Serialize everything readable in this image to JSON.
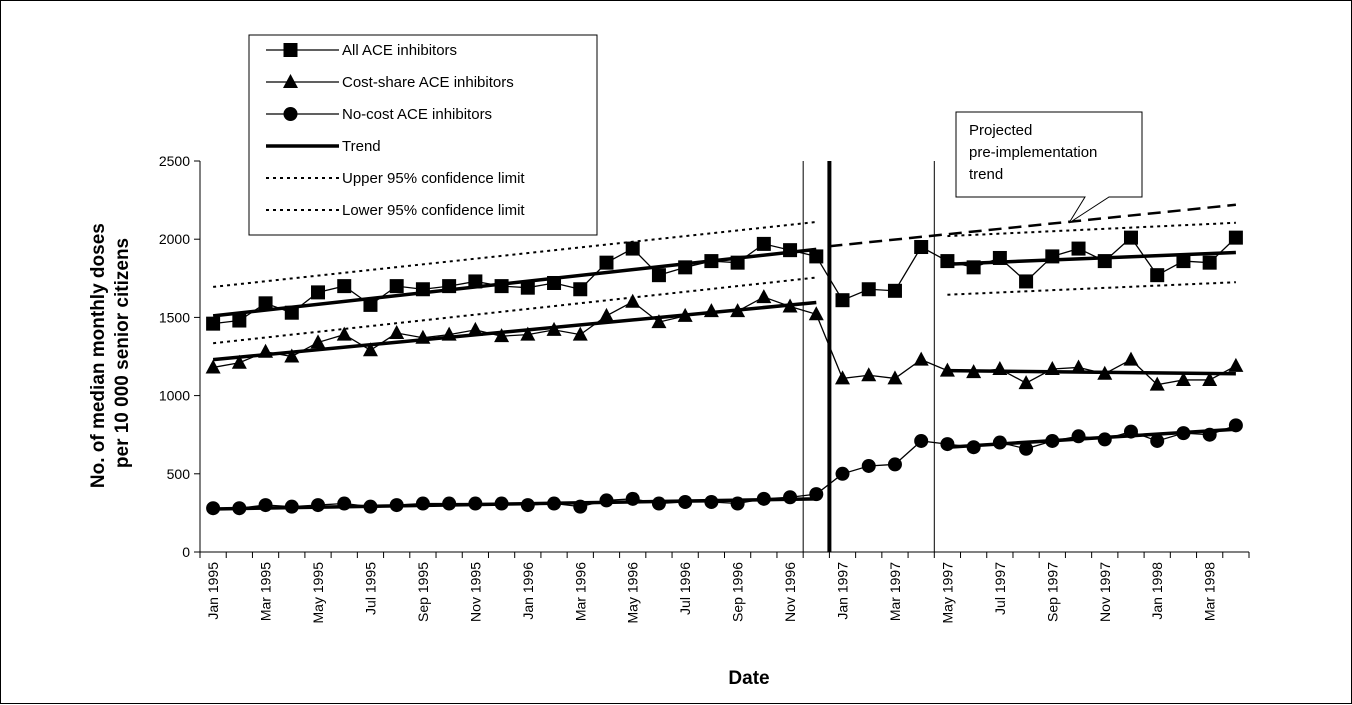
{
  "chart_data": {
    "type": "line",
    "title": "",
    "xlabel": "Date",
    "ylabel_line1": "No. of median monthly doses",
    "ylabel_line2": "per 10 000 senior citizens",
    "ylim": [
      0,
      2500
    ],
    "yticks": [
      0,
      500,
      1000,
      1500,
      2000,
      2500
    ],
    "grid": false,
    "legend_position": "top-left",
    "x_months": [
      "Jan 1995",
      "Feb 1995",
      "Mar 1995",
      "Apr 1995",
      "May 1995",
      "Jun 1995",
      "Jul 1995",
      "Aug 1995",
      "Sep 1995",
      "Oct 1995",
      "Nov 1995",
      "Dec 1995",
      "Jan 1996",
      "Feb 1996",
      "Mar 1996",
      "Apr 1996",
      "May 1996",
      "Jun 1996",
      "Jul 1996",
      "Aug 1996",
      "Sep 1996",
      "Oct 1996",
      "Nov 1996",
      "Dec 1996",
      "Jan 1997",
      "Feb 1997",
      "Mar 1997",
      "Apr 1997",
      "May 1997",
      "Jun 1997",
      "Jul 1997",
      "Aug 1997",
      "Sep 1997",
      "Oct 1997",
      "Nov 1997",
      "Dec 1997",
      "Jan 1998",
      "Feb 1998",
      "Mar 1998",
      "Apr 1998"
    ],
    "x_tick_labels": [
      "Jan 1995",
      "Mar 1995",
      "May 1995",
      "Jul 1995",
      "Sep 1995",
      "Nov 1995",
      "Jan 1996",
      "Mar 1996",
      "May 1996",
      "Jul 1996",
      "Sep 1996",
      "Nov 1996",
      "Jan 1997",
      "Mar 1997",
      "May 1997",
      "Jul 1997",
      "Sep 1997",
      "Nov 1997",
      "Jan 1998",
      "Mar 1998"
    ],
    "series": [
      {
        "name": "All ACE inhibitors",
        "marker": "square",
        "values": [
          1460,
          1480,
          1590,
          1530,
          1660,
          1700,
          1580,
          1700,
          1680,
          1700,
          1730,
          1700,
          1690,
          1720,
          1680,
          1850,
          1940,
          1770,
          1820,
          1860,
          1850,
          1970,
          1930,
          1890,
          1610,
          1680,
          1670,
          1950,
          1860,
          1820,
          1880,
          1730,
          1890,
          1940,
          1860,
          2010,
          1770,
          1860,
          1850,
          2010
        ]
      },
      {
        "name": "Cost-share ACE inhibitors",
        "marker": "triangle",
        "values": [
          1180,
          1210,
          1280,
          1250,
          1340,
          1390,
          1290,
          1400,
          1370,
          1390,
          1420,
          1380,
          1390,
          1420,
          1390,
          1510,
          1600,
          1470,
          1510,
          1540,
          1540,
          1630,
          1570,
          1520,
          1110,
          1130,
          1110,
          1230,
          1160,
          1150,
          1170,
          1080,
          1170,
          1180,
          1140,
          1230,
          1070,
          1100,
          1100,
          1190
        ]
      },
      {
        "name": "No-cost ACE inhibitors",
        "marker": "circle",
        "values": [
          280,
          280,
          300,
          290,
          300,
          310,
          290,
          300,
          310,
          310,
          310,
          310,
          300,
          310,
          290,
          330,
          340,
          310,
          320,
          320,
          310,
          340,
          350,
          370,
          500,
          550,
          560,
          710,
          690,
          670,
          700,
          660,
          710,
          740,
          720,
          770,
          710,
          760,
          750,
          810
        ]
      }
    ],
    "trend_segments": [
      {
        "series": "All ACE inhibitors",
        "x_start": "Jan 1995",
        "x_end": "Dec 1996",
        "y_start": 1510,
        "y_end": 1935
      },
      {
        "series": "All ACE inhibitors",
        "x_start": "May 1997",
        "x_end": "Apr 1998",
        "y_start": 1840,
        "y_end": 1915
      },
      {
        "series": "Cost-share ACE inhibitors",
        "x_start": "Jan 1995",
        "x_end": "Dec 1996",
        "y_start": 1230,
        "y_end": 1595
      },
      {
        "series": "Cost-share ACE inhibitors",
        "x_start": "May 1997",
        "x_end": "Apr 1998",
        "y_start": 1160,
        "y_end": 1140
      },
      {
        "series": "No-cost ACE inhibitors",
        "x_start": "Jan 1995",
        "x_end": "Dec 1996",
        "y_start": 275,
        "y_end": 340
      },
      {
        "series": "No-cost ACE inhibitors",
        "x_start": "May 1997",
        "x_end": "Apr 1998",
        "y_start": 670,
        "y_end": 785
      }
    ],
    "confidence_limits": [
      {
        "type": "upper",
        "x_start": "Jan 1995",
        "x_end": "Dec 1996",
        "y_start": 1695,
        "y_end": 2110
      },
      {
        "type": "lower",
        "x_start": "Jan 1995",
        "x_end": "Dec 1996",
        "y_start": 1335,
        "y_end": 1755
      },
      {
        "type": "upper",
        "x_start": "May 1997",
        "x_end": "Apr 1998",
        "y_start": 2020,
        "y_end": 2105
      },
      {
        "type": "lower",
        "x_start": "May 1997",
        "x_end": "Apr 1998",
        "y_start": 1645,
        "y_end": 1725
      }
    ],
    "projected_trend": {
      "x_start": "Jan 1997",
      "x_end": "Apr 1998",
      "y_start": 1955,
      "y_end": 2220
    },
    "vertical_markers": [
      {
        "between": [
          "Nov 1996",
          "Dec 1996"
        ],
        "style": "thin"
      },
      {
        "between": [
          "Dec 1996",
          "Jan 1997"
        ],
        "style": "thick"
      },
      {
        "between": [
          "Apr 1997",
          "May 1997"
        ],
        "style": "thin"
      }
    ],
    "legend": [
      {
        "label": "All ACE inhibitors",
        "style": "square"
      },
      {
        "label": "Cost-share ACE inhibitors",
        "style": "triangle"
      },
      {
        "label": "No-cost ACE inhibitors",
        "style": "circle"
      },
      {
        "label": "Trend",
        "style": "thick"
      },
      {
        "label": "Upper 95% confidence limit",
        "style": "dotted"
      },
      {
        "label": "Lower 95% confidence limit",
        "style": "dotted"
      }
    ],
    "annotation": {
      "lines": [
        "Projected",
        "pre-implementation",
        "trend"
      ]
    }
  }
}
